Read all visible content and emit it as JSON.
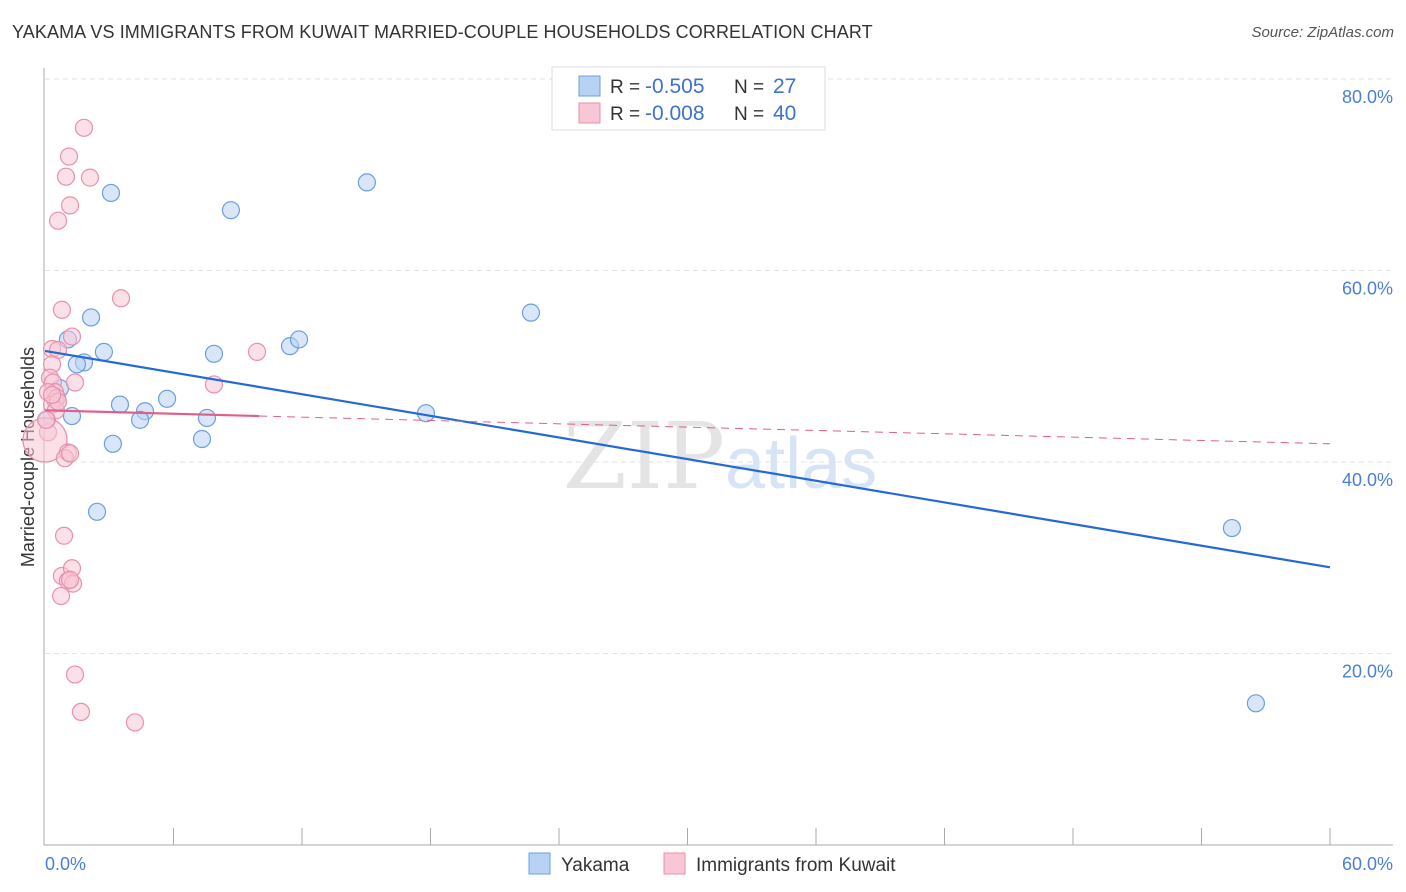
{
  "chart_data": {
    "type": "scatter",
    "title": "YAKAMA VS IMMIGRANTS FROM KUWAIT MARRIED-COUPLE HOUSEHOLDS CORRELATION CHART",
    "source": "Source: ZipAtlas.com",
    "xlabel": "",
    "ylabel": "Married-couple Households",
    "xlim": [
      0,
      60
    ],
    "ylim": [
      0,
      80
    ],
    "x_tick_labels": [
      "0.0%",
      "60.0%"
    ],
    "y_ticks": [
      20,
      40,
      60,
      80
    ],
    "y_tick_labels": [
      "20.0%",
      "40.0%",
      "60.0%",
      "80.0%"
    ],
    "grid": true,
    "watermark": "ZIPatlas",
    "legend": {
      "placement": "top-center",
      "rows": [
        {
          "r_label": "R = ",
          "r": "-0.505",
          "n_label": "N = ",
          "n": "27"
        },
        {
          "r_label": "R = ",
          "r": "-0.008",
          "n_label": "N = ",
          "n": "40"
        }
      ]
    },
    "series": [
      {
        "name": "Yakama",
        "color": "#6a9fe0",
        "fill": "#b8d2f3",
        "line_color": "#2469d6",
        "trend": {
          "x": [
            0,
            60
          ],
          "y": [
            51.6,
            29.0
          ]
        },
        "points": [
          [
            3.08,
            68.1
          ],
          [
            8.68,
            66.3
          ],
          [
            15.03,
            69.2
          ],
          [
            2.15,
            55.1
          ],
          [
            1.07,
            52.8
          ],
          [
            2.75,
            51.5
          ],
          [
            7.89,
            51.3
          ],
          [
            1.82,
            50.4
          ],
          [
            1.49,
            50.2
          ],
          [
            11.44,
            52.1
          ],
          [
            11.86,
            52.8
          ],
          [
            22.69,
            55.6
          ],
          [
            0.7,
            47.7
          ],
          [
            5.7,
            46.6
          ],
          [
            3.5,
            46.0
          ],
          [
            4.67,
            45.3
          ],
          [
            4.44,
            44.4
          ],
          [
            7.56,
            44.6
          ],
          [
            1.26,
            44.8
          ],
          [
            17.79,
            45.1
          ],
          [
            3.17,
            41.9
          ],
          [
            7.33,
            42.4
          ],
          [
            0.09,
            44.4
          ],
          [
            2.43,
            34.8
          ],
          [
            55.42,
            33.1
          ],
          [
            56.54,
            14.8
          ],
          [
            0.47,
            46.5
          ]
        ]
      },
      {
        "name": "Immigrants from Kuwait",
        "color": "#e990ad",
        "fill": "#f8c6d5",
        "line_color": "#e0608a",
        "trend": {
          "x": [
            0,
            10
          ],
          "y": [
            45.4,
            44.8
          ],
          "dashed_x": [
            10,
            60
          ],
          "dashed_y": [
            44.8,
            41.9
          ]
        },
        "points": [
          [
            1.82,
            74.9
          ],
          [
            1.12,
            71.9
          ],
          [
            0.98,
            69.8
          ],
          [
            2.1,
            69.7
          ],
          [
            1.17,
            66.8
          ],
          [
            0.61,
            65.2
          ],
          [
            3.55,
            57.1
          ],
          [
            0.79,
            55.9
          ],
          [
            1.26,
            53.1
          ],
          [
            0.33,
            51.8
          ],
          [
            0.61,
            51.7
          ],
          [
            0.33,
            50.2
          ],
          [
            9.9,
            51.5
          ],
          [
            1.4,
            48.3
          ],
          [
            7.89,
            48.1
          ],
          [
            0.23,
            48.8
          ],
          [
            0.37,
            48.3
          ],
          [
            0.47,
            47.3
          ],
          [
            0.14,
            47.3
          ],
          [
            0.56,
            46.7
          ],
          [
            0.33,
            46.0
          ],
          [
            0.51,
            45.4
          ],
          [
            0.14,
            43.1
          ],
          [
            0,
            42.3
          ],
          [
            1.07,
            41.0
          ],
          [
            0.93,
            40.4
          ],
          [
            1.17,
            40.9
          ],
          [
            0.89,
            32.3
          ],
          [
            0.79,
            28.1
          ],
          [
            1.26,
            28.9
          ],
          [
            1.07,
            27.6
          ],
          [
            1.31,
            27.3
          ],
          [
            1.17,
            27.7
          ],
          [
            0.75,
            26.0
          ],
          [
            1.4,
            17.8
          ],
          [
            1.68,
            13.9
          ],
          [
            4.2,
            12.8
          ],
          [
            0.05,
            44.4
          ],
          [
            0.61,
            46.3
          ],
          [
            0.33,
            47.0
          ]
        ]
      }
    ]
  }
}
